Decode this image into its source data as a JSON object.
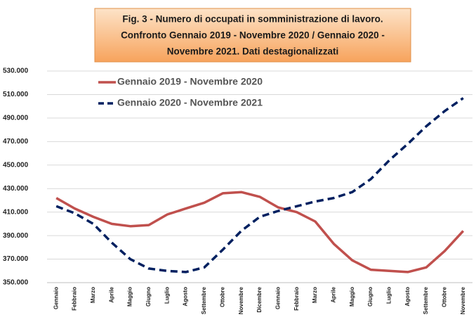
{
  "chart_data": {
    "type": "line",
    "title": [
      "Fig. 3 - Numero di occupati in somministrazione di lavoro.",
      "Confronto Gennaio 2019 - Novembre 2020 / Gennaio 2020 -",
      "Novembre 2021. Dati destagionalizzati"
    ],
    "categories": [
      "Gennaio",
      "Febbraio",
      "Marzo",
      "Aprile",
      "Maggio",
      "Giugno",
      "Luglio",
      "Agosto",
      "Settembre",
      "Ottobre",
      "Novembre",
      "Dicembre",
      "Gennaio",
      "Febbraio",
      "Marzo",
      "Aprile",
      "Maggio",
      "Giugno",
      "Luglio",
      "Agosto",
      "Settembre",
      "Ottobre",
      "Novembre"
    ],
    "series": [
      {
        "name": "Gennaio 2019 - Novembre 2020",
        "color": "#c0504d",
        "dashed": false,
        "values": [
          422000,
          413000,
          406000,
          400000,
          398000,
          399000,
          408000,
          413000,
          418000,
          426000,
          427000,
          423000,
          414000,
          410000,
          402000,
          383000,
          369000,
          361000,
          360000,
          359000,
          363000,
          377000,
          394000
        ]
      },
      {
        "name": "Gennaio 2020 - Novembre 2021",
        "color": "#002060",
        "dashed": true,
        "values": [
          415000,
          409000,
          400000,
          384000,
          370000,
          362000,
          360000,
          359000,
          363000,
          378000,
          394000,
          406000,
          411000,
          415000,
          419000,
          422000,
          427000,
          438000,
          454000,
          468000,
          483000,
          496000,
          507000
        ]
      }
    ],
    "ylim": [
      350000,
      530000
    ],
    "yticks": [
      {
        "value": 350000,
        "label": "350.000"
      },
      {
        "value": 370000,
        "label": "370.000"
      },
      {
        "value": 390000,
        "label": "390.000"
      },
      {
        "value": 410000,
        "label": "410.000"
      },
      {
        "value": 430000,
        "label": "430.000"
      },
      {
        "value": 450000,
        "label": "450.000"
      },
      {
        "value": 470000,
        "label": "470.000"
      },
      {
        "value": 490000,
        "label": "490.000"
      },
      {
        "value": 510000,
        "label": "510.000"
      },
      {
        "value": 530000,
        "label": "530.000"
      }
    ],
    "grid": true,
    "legend": "upper left"
  }
}
